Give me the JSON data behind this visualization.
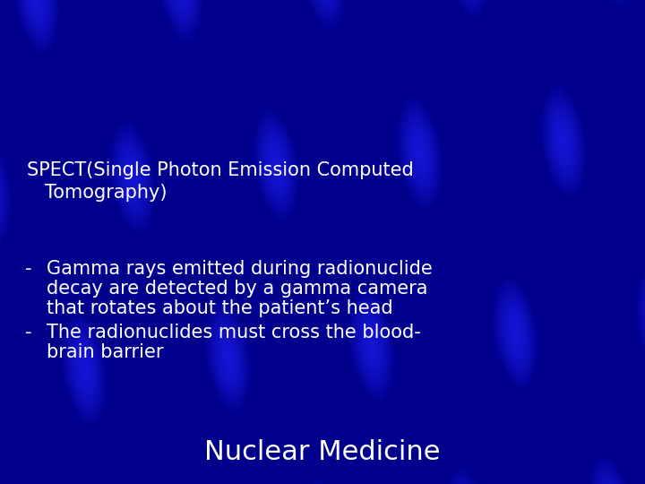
{
  "title": "Nuclear Medicine",
  "subtitle_line1": "SPECT(Single Photon Emission Computed",
  "subtitle_line2": "   Tomography)",
  "bullet1_dash": "-",
  "bullet1_line1": "Gamma rays emitted during radionuclide",
  "bullet1_line2": "decay are detected by a gamma camera",
  "bullet1_line3": "that rotates about the patient’s head",
  "bullet2_dash": "-",
  "bullet2_line1": "The radionuclides must cross the blood-",
  "bullet2_line2": "brain barrier",
  "bg_dark": "#00008B",
  "bg_mid": "#0000BB",
  "streak_color": "#2020DD",
  "text_color": "#FFFFFF",
  "title_fontsize": 22,
  "subtitle_fontsize": 15,
  "bullet_fontsize": 15
}
